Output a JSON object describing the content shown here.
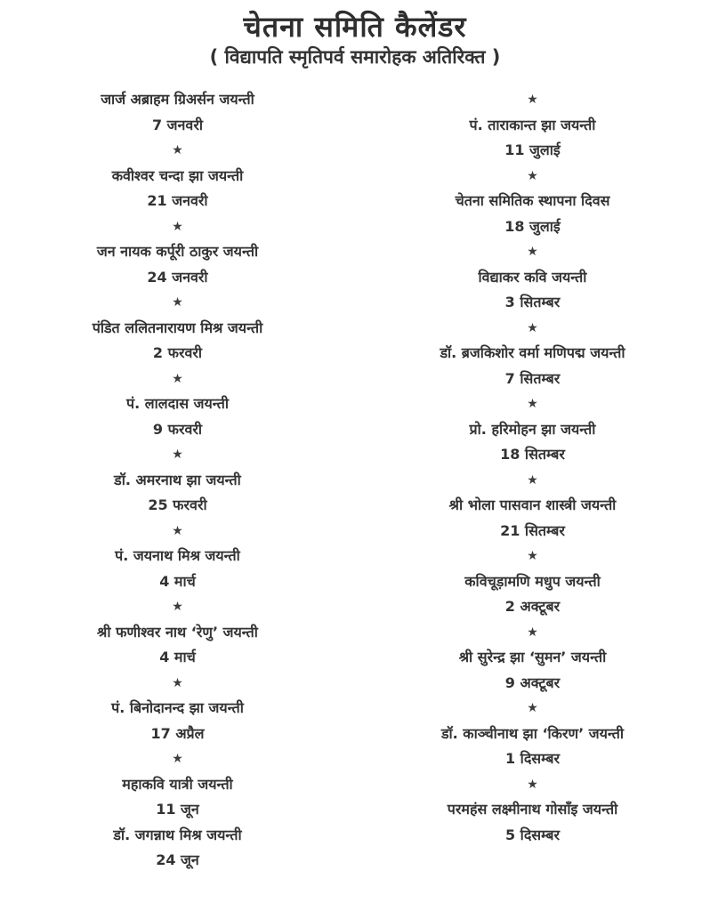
{
  "page": {
    "title": "चेतना समिति कैलेंडर",
    "subtitle": "( विद्यापति स्मृतिपर्व समारोहक अतिरिक्त )"
  },
  "star_glyph": "★",
  "text_color": "#333333",
  "columns": {
    "left": [
      {
        "kind": "name",
        "text": "जार्ज अब्राहम ग्रिअर्सन जयन्ती"
      },
      {
        "kind": "date",
        "text": "7 जनवरी"
      },
      {
        "kind": "star"
      },
      {
        "kind": "name",
        "text": "कवीश्वर चन्दा झा जयन्ती"
      },
      {
        "kind": "date",
        "text": "21 जनवरी"
      },
      {
        "kind": "star"
      },
      {
        "kind": "name",
        "text": "जन नायक कर्पूरी ठाकुर जयन्ती"
      },
      {
        "kind": "date",
        "text": "24 जनवरी"
      },
      {
        "kind": "star"
      },
      {
        "kind": "name",
        "text": "पंडित ललितनारायण मिश्र जयन्ती"
      },
      {
        "kind": "date",
        "text": "2 फरवरी"
      },
      {
        "kind": "star"
      },
      {
        "kind": "name",
        "text": "पं. लालदास जयन्ती"
      },
      {
        "kind": "date",
        "text": "9 फरवरी"
      },
      {
        "kind": "star"
      },
      {
        "kind": "name",
        "text": "डॉ. अमरनाथ झा जयन्ती"
      },
      {
        "kind": "date",
        "text": "25 फरवरी"
      },
      {
        "kind": "star"
      },
      {
        "kind": "name",
        "text": "पं. जयनाथ मिश्र जयन्ती"
      },
      {
        "kind": "date",
        "text": "4 मार्च"
      },
      {
        "kind": "star"
      },
      {
        "kind": "name",
        "text": "श्री फणीश्वर नाथ ‘रेणु’ जयन्ती"
      },
      {
        "kind": "date",
        "text": "4 मार्च"
      },
      {
        "kind": "star"
      },
      {
        "kind": "name",
        "text": "पं. बिनोदानन्द झा जयन्ती"
      },
      {
        "kind": "date",
        "text": "17 अप्रैल"
      },
      {
        "kind": "star"
      },
      {
        "kind": "name",
        "text": "महाकवि यात्री जयन्ती"
      },
      {
        "kind": "date",
        "text": "11 जून"
      },
      {
        "kind": "name",
        "text": "डॉ. जगन्नाथ मिश्र जयन्ती"
      },
      {
        "kind": "date",
        "text": "24 जून"
      }
    ],
    "right": [
      {
        "kind": "star"
      },
      {
        "kind": "name",
        "text": "पं. ताराकान्त झा जयन्ती"
      },
      {
        "kind": "date",
        "text": "11 जुलाई"
      },
      {
        "kind": "star"
      },
      {
        "kind": "name",
        "text": "चेतना समितिक स्थापना दिवस"
      },
      {
        "kind": "date",
        "text": "18 जुलाई"
      },
      {
        "kind": "star"
      },
      {
        "kind": "name",
        "text": "विद्याकर कवि जयन्ती"
      },
      {
        "kind": "date",
        "text": "3 सितम्बर"
      },
      {
        "kind": "star"
      },
      {
        "kind": "name",
        "text": "डॉ. ब्रजकिशोर वर्मा मणिपद्म जयन्ती"
      },
      {
        "kind": "date",
        "text": "7 सितम्बर"
      },
      {
        "kind": "star"
      },
      {
        "kind": "name",
        "text": "प्रो. हरिमोहन झा जयन्ती"
      },
      {
        "kind": "date",
        "text": "18 सितम्बर"
      },
      {
        "kind": "star"
      },
      {
        "kind": "name",
        "text": "श्री भोला पासवान शास्त्री जयन्ती"
      },
      {
        "kind": "date",
        "text": "21 सितम्बर"
      },
      {
        "kind": "star"
      },
      {
        "kind": "name",
        "text": "कविचूड़ामणि मधुप जयन्ती"
      },
      {
        "kind": "date",
        "text": "2 अक्टूबर"
      },
      {
        "kind": "star"
      },
      {
        "kind": "name",
        "text": "श्री सुरेन्द्र झा ‘सुमन’ जयन्ती"
      },
      {
        "kind": "date",
        "text": "9 अक्टूबर"
      },
      {
        "kind": "star"
      },
      {
        "kind": "name",
        "text": "डॉ. काञ्चीनाथ झा ‘किरण’ जयन्ती"
      },
      {
        "kind": "date",
        "text": "1 दिसम्बर"
      },
      {
        "kind": "star"
      },
      {
        "kind": "name",
        "text": "परमहंस लक्ष्मीनाथ गोसाँइ जयन्ती"
      },
      {
        "kind": "date",
        "text": "5 दिसम्बर"
      }
    ]
  }
}
